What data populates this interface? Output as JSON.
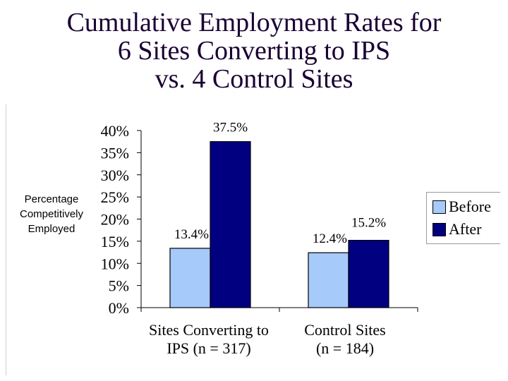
{
  "title": {
    "line1": "Cumulative Employment Rates for",
    "line2": "6 Sites Converting to IPS",
    "line3": "vs. 4 Control Sites"
  },
  "y_axis_label": {
    "line1": "Percentage",
    "line2": "Competitively",
    "line3": "Employed"
  },
  "categories_display": [
    {
      "line1": "Sites Converting to",
      "line2": "IPS (n = 317)"
    },
    {
      "line1": "Control Sites",
      "line2": "(n = 184)"
    }
  ],
  "colors": {
    "before": "#a6cafa",
    "after": "#000080",
    "title": "#1a0033"
  },
  "chart_data": {
    "type": "bar",
    "categories": [
      "Sites Converting to IPS (n = 317)",
      "Control Sites (n = 184)"
    ],
    "series": [
      {
        "name": "Before",
        "values": [
          13.4,
          12.4
        ],
        "labels": [
          "13.4%",
          "12.4%"
        ]
      },
      {
        "name": "After",
        "values": [
          37.5,
          15.2
        ],
        "labels": [
          "37.5%",
          "15.2%"
        ]
      }
    ],
    "yticks": [
      "0%",
      "5%",
      "10%",
      "15%",
      "20%",
      "25%",
      "30%",
      "35%",
      "40%"
    ],
    "ylim": [
      0,
      40
    ],
    "ylabel": "Percentage Competitively Employed",
    "legend_position": "right",
    "grid": false
  }
}
